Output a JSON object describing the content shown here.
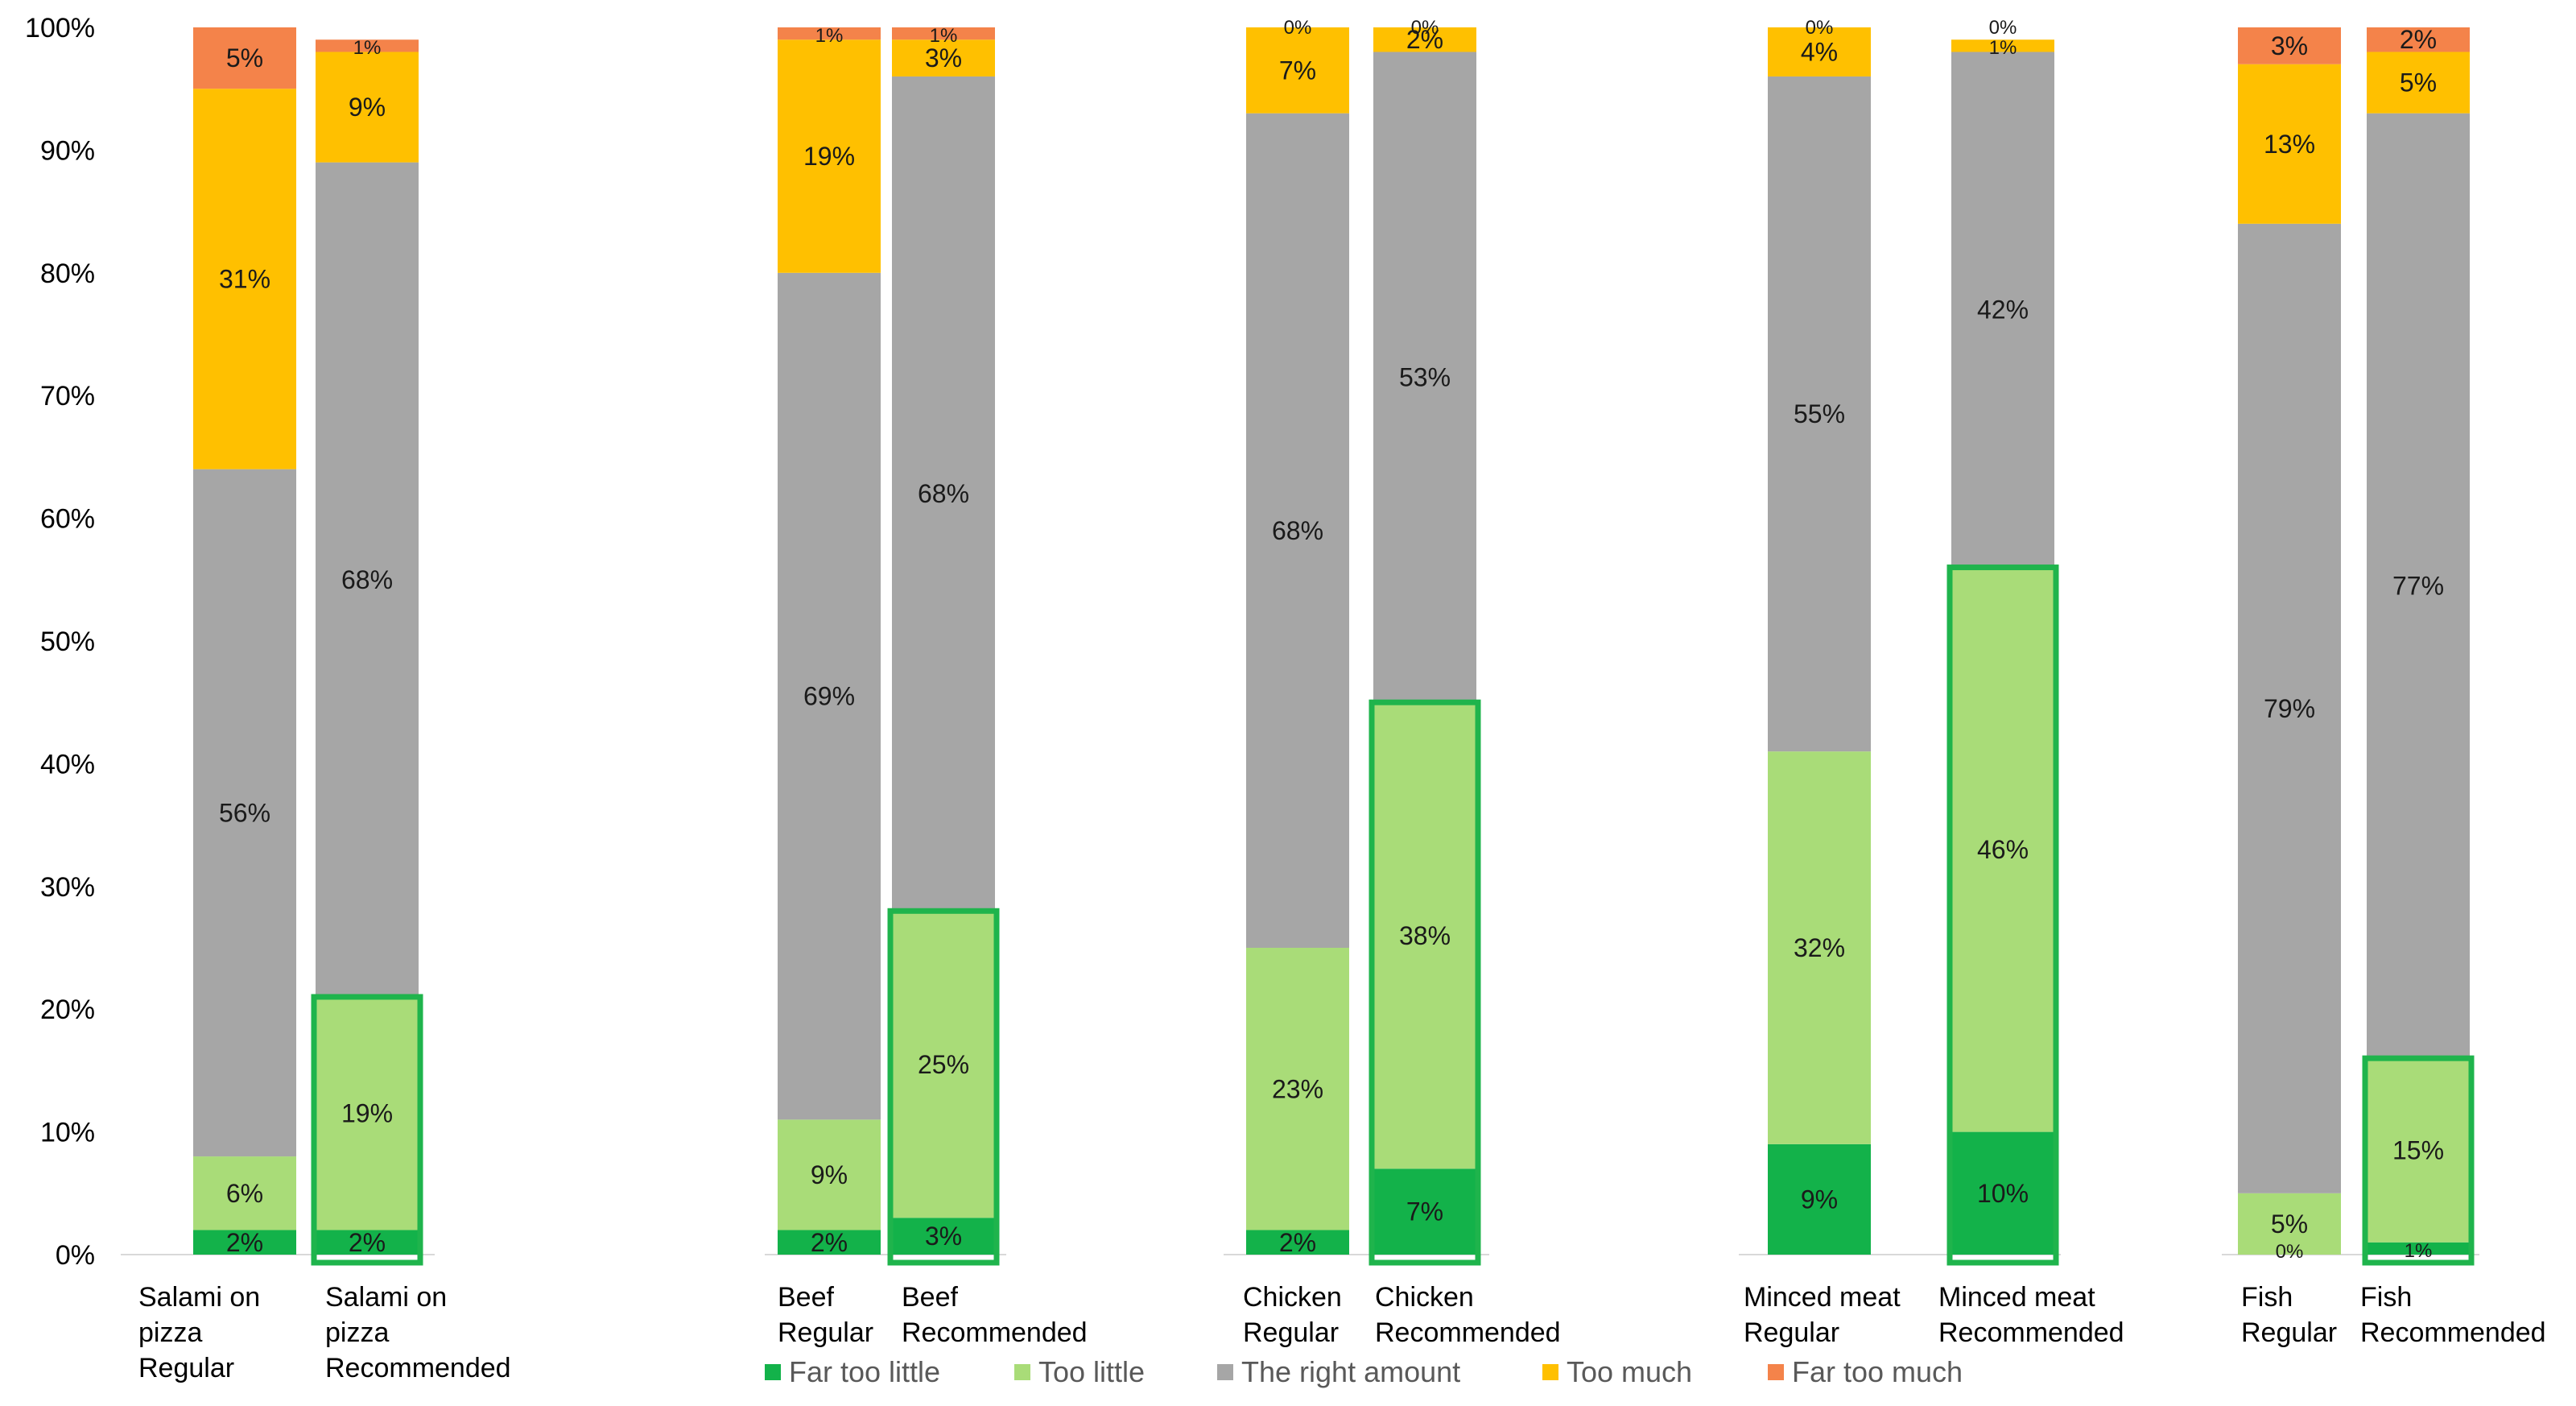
{
  "chart_data": {
    "type": "bar",
    "stacked": true,
    "percent": true,
    "ylim": [
      0,
      100
    ],
    "yticks": [
      "0%",
      "10%",
      "20%",
      "30%",
      "40%",
      "50%",
      "60%",
      "70%",
      "80%",
      "90%",
      "100%"
    ],
    "legend_position": "bottom",
    "series_names": [
      "Far too little",
      "Too little",
      "The right amount",
      "Too much",
      "Far too much"
    ],
    "colors": [
      "#13b24a",
      "#a9dc78",
      "#a6a6a6",
      "#ffc000",
      "#f4834a"
    ],
    "highlight_color": "#1fb44c",
    "bars": [
      {
        "label": [
          "Salami on",
          "pizza",
          "Regular"
        ],
        "values": [
          2,
          6,
          56,
          31,
          5
        ],
        "labels": [
          "2%",
          "6%",
          "56%",
          "31%",
          "5%"
        ],
        "highlight": false
      },
      {
        "label": [
          "Salami on",
          "pizza",
          "Recommended"
        ],
        "values": [
          2,
          19,
          68,
          9,
          1
        ],
        "labels": [
          "2%",
          "19%",
          "68%",
          "9%",
          "1%"
        ],
        "highlight": true
      },
      {
        "label": [
          "Beef",
          "Regular"
        ],
        "values": [
          2,
          9,
          69,
          19,
          1
        ],
        "labels": [
          "2%",
          "9%",
          "69%",
          "19%",
          "1%"
        ],
        "highlight": false
      },
      {
        "label": [
          "Beef",
          "Recommended"
        ],
        "values": [
          3,
          25,
          68,
          3,
          1
        ],
        "labels": [
          "3%",
          "25%",
          "68%",
          "3%",
          "1%"
        ],
        "highlight": true
      },
      {
        "label": [
          "Chicken",
          "Regular"
        ],
        "values": [
          2,
          23,
          68,
          7,
          0
        ],
        "labels": [
          "2%",
          "23%",
          "68%",
          "7%",
          "0%"
        ],
        "highlight": false
      },
      {
        "label": [
          "Chicken",
          "Recommended"
        ],
        "values": [
          7,
          38,
          53,
          2,
          0
        ],
        "labels": [
          "7%",
          "38%",
          "53%",
          "2%",
          "0%"
        ],
        "highlight": true
      },
      {
        "label": [
          "Minced meat",
          "Regular"
        ],
        "values": [
          9,
          32,
          55,
          4,
          0
        ],
        "labels": [
          "9%",
          "32%",
          "55%",
          "4%",
          "0%"
        ],
        "highlight": false
      },
      {
        "label": [
          "Minced meat",
          "Recommended"
        ],
        "values": [
          10,
          46,
          42,
          1,
          0
        ],
        "labels": [
          "10%",
          "46%",
          "42%",
          "1%",
          "0%"
        ],
        "highlight": true
      },
      {
        "label": [
          "Fish",
          "Regular"
        ],
        "values": [
          0,
          5,
          79,
          13,
          3
        ],
        "labels": [
          "0%",
          "5%",
          "79%",
          "13%",
          "3%"
        ],
        "highlight": false
      },
      {
        "label": [
          "Fish",
          "Recommended"
        ],
        "values": [
          1,
          15,
          77,
          5,
          2
        ],
        "labels": [
          "1%",
          "15%",
          "77%",
          "5%",
          "2%"
        ],
        "highlight": true
      }
    ]
  }
}
